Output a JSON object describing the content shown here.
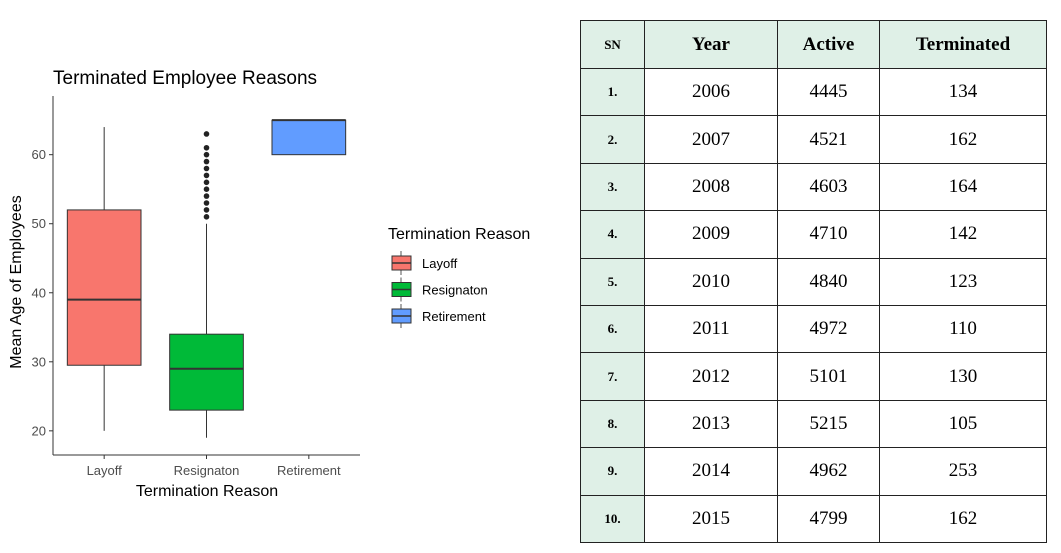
{
  "chart_data": {
    "type": "box",
    "title": "Terminated Employee Reasons",
    "xlabel": "Termination Reason",
    "ylabel": "Mean Age of Employees",
    "ylim": [
      16.5,
      68.5
    ],
    "yticks": [
      20,
      30,
      40,
      50,
      60
    ],
    "grid": false,
    "legend": {
      "title": "Termination Reason",
      "placement": "right",
      "entries": [
        "Layoff",
        "Resignaton",
        "Retirement"
      ]
    },
    "categories": [
      "Layoff",
      "Resignaton",
      "Retirement"
    ],
    "colors": [
      "#F8766D",
      "#00BA38",
      "#619CFF"
    ],
    "boxes": [
      {
        "name": "Layoff",
        "whisker_low": 20,
        "q1": 29.5,
        "median": 39,
        "q3": 52,
        "whisker_high": 64,
        "outliers": []
      },
      {
        "name": "Resignaton",
        "whisker_low": 19,
        "q1": 23,
        "median": 29,
        "q3": 34,
        "whisker_high": 50,
        "outliers": [
          51,
          52,
          53,
          54,
          55,
          56,
          57,
          58,
          59,
          60,
          61,
          63
        ]
      },
      {
        "name": "Retirement",
        "whisker_low": 60,
        "q1": 60,
        "median": 65,
        "q3": 65,
        "whisker_high": 65,
        "outliers": []
      }
    ]
  },
  "table": {
    "headers": [
      "SN",
      "Year",
      "Active",
      "Terminated"
    ],
    "rows": [
      [
        "1.",
        "2006",
        "4445",
        "134"
      ],
      [
        "2.",
        "2007",
        "4521",
        "162"
      ],
      [
        "3.",
        "2008",
        "4603",
        "164"
      ],
      [
        "4.",
        "2009",
        "4710",
        "142"
      ],
      [
        "5.",
        "2010",
        "4840",
        "123"
      ],
      [
        "6.",
        "2011",
        "4972",
        "110"
      ],
      [
        "7.",
        "2012",
        "5101",
        "130"
      ],
      [
        "8.",
        "2013",
        "5215",
        "105"
      ],
      [
        "9.",
        "2014",
        "4962",
        "253"
      ],
      [
        "10.",
        "2015",
        "4799",
        "162"
      ]
    ]
  }
}
